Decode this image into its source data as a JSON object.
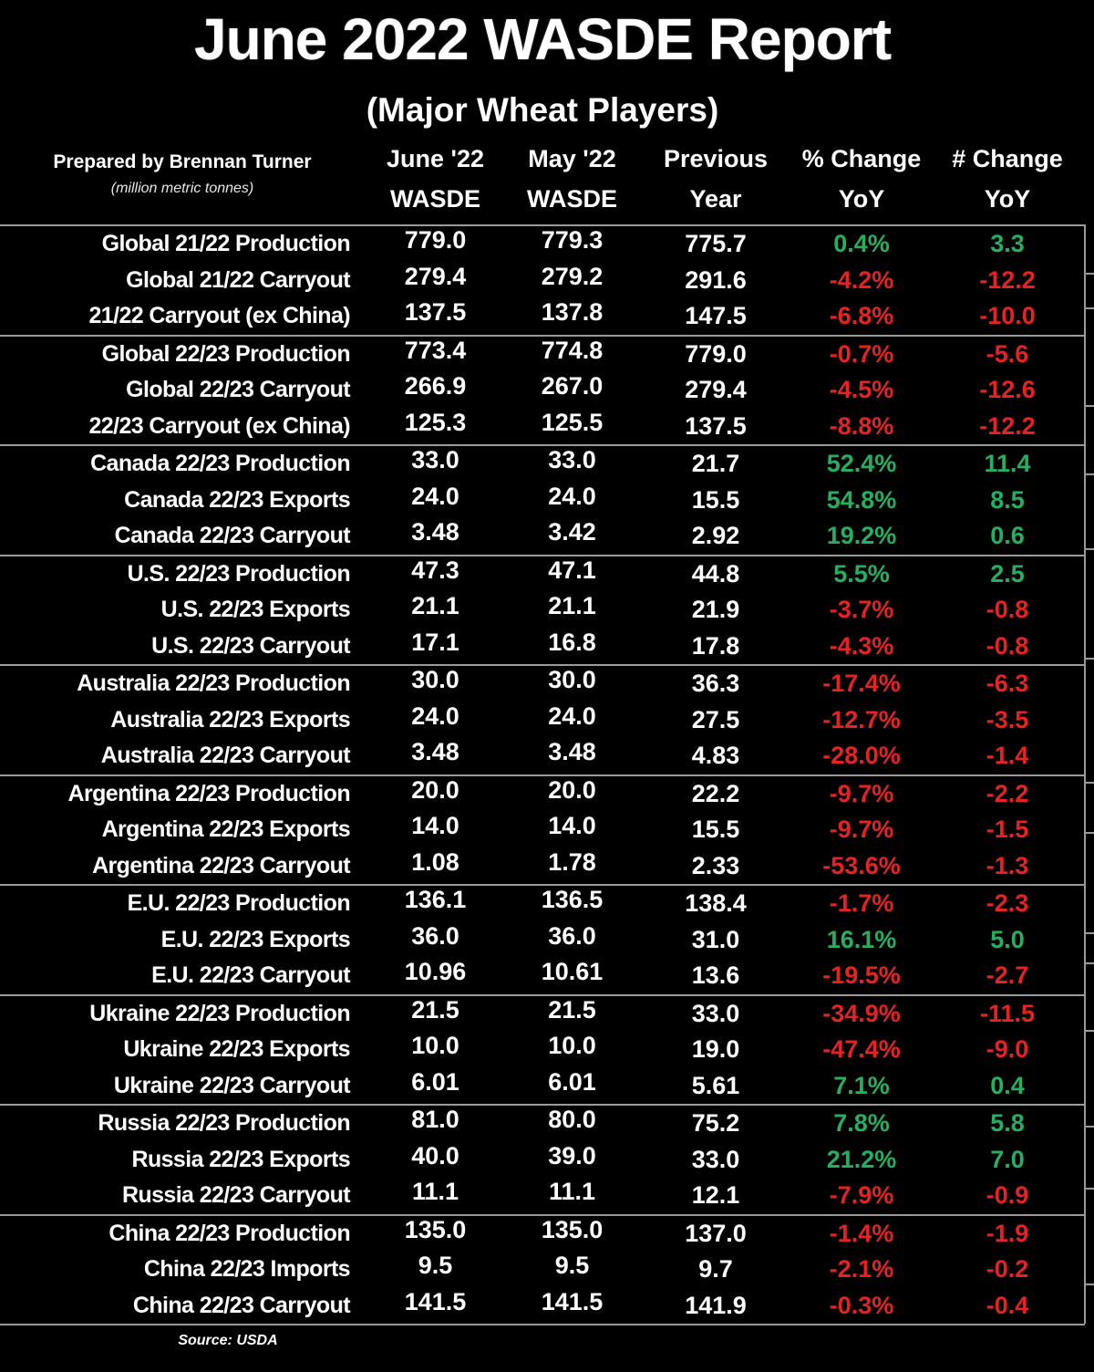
{
  "page": {
    "title": "June 2022 WASDE Report",
    "subtitle": "(Major Wheat Players)",
    "prepared_by": "Prepared by Brennan Turner",
    "units_note": "(million metric tonnes)",
    "source_note": "Source: USDA"
  },
  "colors": {
    "background": "#000000",
    "text": "#ffffff",
    "positive": "#27ae60",
    "negative": "#e62222",
    "grid_line": "#9a9a9a"
  },
  "chart_data": {
    "type": "table",
    "title": "June 2022 WASDE Report",
    "subtitle": "(Major Wheat Players)",
    "units": "million metric tonnes",
    "columns": [
      {
        "line1": "June '22",
        "line2": "WASDE"
      },
      {
        "line1": "May '22",
        "line2": "WASDE"
      },
      {
        "line1": "Previous",
        "line2": "Year"
      },
      {
        "line1": "% Change",
        "line2": "YoY"
      },
      {
        "line1": "# Change",
        "line2": "YoY"
      }
    ],
    "groups": [
      {
        "rows": [
          {
            "label": "Global 21/22 Production",
            "june": "779.0",
            "may": "779.3",
            "prev": "775.7",
            "pct": "0.4%",
            "num": "3.3"
          },
          {
            "label": "Global 21/22 Carryout",
            "june": "279.4",
            "may": "279.2",
            "prev": "291.6",
            "pct": "-4.2%",
            "num": "-12.2"
          },
          {
            "label": "21/22 Carryout (ex China)",
            "june": "137.5",
            "may": "137.8",
            "prev": "147.5",
            "pct": "-6.8%",
            "num": "-10.0"
          }
        ]
      },
      {
        "rows": [
          {
            "label": "Global 22/23 Production",
            "june": "773.4",
            "may": "774.8",
            "prev": "779.0",
            "pct": "-0.7%",
            "num": "-5.6"
          },
          {
            "label": "Global 22/23 Carryout",
            "june": "266.9",
            "may": "267.0",
            "prev": "279.4",
            "pct": "-4.5%",
            "num": "-12.6"
          },
          {
            "label": "22/23 Carryout (ex China)",
            "june": "125.3",
            "may": "125.5",
            "prev": "137.5",
            "pct": "-8.8%",
            "num": "-12.2"
          }
        ]
      },
      {
        "rows": [
          {
            "label": "Canada 22/23 Production",
            "june": "33.0",
            "may": "33.0",
            "prev": "21.7",
            "pct": "52.4%",
            "num": "11.4"
          },
          {
            "label": "Canada 22/23 Exports",
            "june": "24.0",
            "may": "24.0",
            "prev": "15.5",
            "pct": "54.8%",
            "num": "8.5"
          },
          {
            "label": "Canada 22/23 Carryout",
            "june": "3.48",
            "may": "3.42",
            "prev": "2.92",
            "pct": "19.2%",
            "num": "0.6"
          }
        ]
      },
      {
        "rows": [
          {
            "label": "U.S. 22/23 Production",
            "june": "47.3",
            "may": "47.1",
            "prev": "44.8",
            "pct": "5.5%",
            "num": "2.5"
          },
          {
            "label": "U.S. 22/23 Exports",
            "june": "21.1",
            "may": "21.1",
            "prev": "21.9",
            "pct": "-3.7%",
            "num": "-0.8"
          },
          {
            "label": "U.S. 22/23 Carryout",
            "june": "17.1",
            "may": "16.8",
            "prev": "17.8",
            "pct": "-4.3%",
            "num": "-0.8"
          }
        ]
      },
      {
        "rows": [
          {
            "label": "Australia 22/23 Production",
            "june": "30.0",
            "may": "30.0",
            "prev": "36.3",
            "pct": "-17.4%",
            "num": "-6.3"
          },
          {
            "label": "Australia 22/23 Exports",
            "june": "24.0",
            "may": "24.0",
            "prev": "27.5",
            "pct": "-12.7%",
            "num": "-3.5"
          },
          {
            "label": "Australia 22/23 Carryout",
            "june": "3.48",
            "may": "3.48",
            "prev": "4.83",
            "pct": "-28.0%",
            "num": "-1.4"
          }
        ]
      },
      {
        "rows": [
          {
            "label": "Argentina 22/23 Production",
            "june": "20.0",
            "may": "20.0",
            "prev": "22.2",
            "pct": "-9.7%",
            "num": "-2.2"
          },
          {
            "label": "Argentina 22/23 Exports",
            "june": "14.0",
            "may": "14.0",
            "prev": "15.5",
            "pct": "-9.7%",
            "num": "-1.5"
          },
          {
            "label": "Argentina 22/23 Carryout",
            "june": "1.08",
            "may": "1.78",
            "prev": "2.33",
            "pct": "-53.6%",
            "num": "-1.3"
          }
        ]
      },
      {
        "rows": [
          {
            "label": "E.U. 22/23 Production",
            "june": "136.1",
            "may": "136.5",
            "prev": "138.4",
            "pct": "-1.7%",
            "num": "-2.3"
          },
          {
            "label": "E.U. 22/23 Exports",
            "june": "36.0",
            "may": "36.0",
            "prev": "31.0",
            "pct": "16.1%",
            "num": "5.0"
          },
          {
            "label": "E.U. 22/23 Carryout",
            "june": "10.96",
            "may": "10.61",
            "prev": "13.6",
            "pct": "-19.5%",
            "num": "-2.7"
          }
        ]
      },
      {
        "rows": [
          {
            "label": "Ukraine 22/23 Production",
            "june": "21.5",
            "may": "21.5",
            "prev": "33.0",
            "pct": "-34.9%",
            "num": "-11.5"
          },
          {
            "label": "Ukraine 22/23 Exports",
            "june": "10.0",
            "may": "10.0",
            "prev": "19.0",
            "pct": "-47.4%",
            "num": "-9.0"
          },
          {
            "label": "Ukraine 22/23 Carryout",
            "june": "6.01",
            "may": "6.01",
            "prev": "5.61",
            "pct": "7.1%",
            "num": "0.4"
          }
        ]
      },
      {
        "rows": [
          {
            "label": "Russia 22/23 Production",
            "june": "81.0",
            "may": "80.0",
            "prev": "75.2",
            "pct": "7.8%",
            "num": "5.8"
          },
          {
            "label": "Russia 22/23 Exports",
            "june": "40.0",
            "may": "39.0",
            "prev": "33.0",
            "pct": "21.2%",
            "num": "7.0"
          },
          {
            "label": "Russia 22/23 Carryout",
            "june": "11.1",
            "may": "11.1",
            "prev": "12.1",
            "pct": "-7.9%",
            "num": "-0.9"
          }
        ]
      },
      {
        "rows": [
          {
            "label": "China 22/23 Production",
            "june": "135.0",
            "may": "135.0",
            "prev": "137.0",
            "pct": "-1.4%",
            "num": "-1.9"
          },
          {
            "label": "China 22/23 Imports",
            "june": "9.5",
            "may": "9.5",
            "prev": "9.7",
            "pct": "-2.1%",
            "num": "-0.2"
          },
          {
            "label": "China 22/23 Carryout",
            "june": "141.5",
            "may": "141.5",
            "prev": "141.9",
            "pct": "-0.3%",
            "num": "-0.4"
          }
        ]
      }
    ]
  }
}
